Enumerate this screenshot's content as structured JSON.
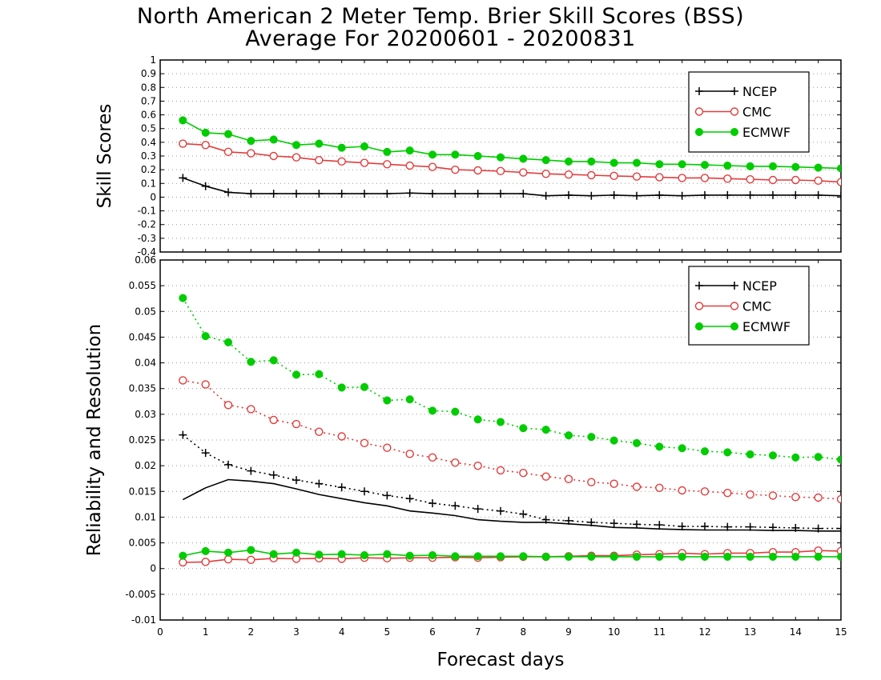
{
  "title_line1": "North American 2 Meter Temp. Brier Skill Scores (BSS)",
  "title_line2": "Average For 20200601 - 20200831",
  "colors": {
    "NCEP": "#000000",
    "CMC": "#e23c3c",
    "ECMWF": "#00cc00"
  },
  "chart_data": [
    {
      "type": "line",
      "ylabel": "Skill Scores",
      "xlabel": "",
      "xlim": [
        0,
        15
      ],
      "ylim": [
        -0.4,
        1
      ],
      "y_ticks": [
        "-0.4",
        "-0.3",
        "-0.2",
        "-0.1",
        "0",
        "0.1",
        "0.2",
        "0.3",
        "0.4",
        "0.5",
        "0.6",
        "0.7",
        "0.8",
        "0.9",
        "1"
      ],
      "grid": true,
      "legend": {
        "position": "top-right",
        "entries": [
          "NCEP",
          "CMC",
          "ECMWF"
        ]
      },
      "x": [
        0.5,
        1,
        1.5,
        2,
        2.5,
        3,
        3.5,
        4,
        4.5,
        5,
        5.5,
        6,
        6.5,
        7,
        7.5,
        8,
        8.5,
        9,
        9.5,
        10,
        10.5,
        11,
        11.5,
        12,
        12.5,
        13,
        13.5,
        14,
        14.5,
        15
      ],
      "series": [
        {
          "name": "NCEP",
          "marker": "plus",
          "values": [
            0.14,
            0.08,
            0.035,
            0.025,
            0.025,
            0.025,
            0.025,
            0.025,
            0.025,
            0.025,
            0.03,
            0.025,
            0.025,
            0.025,
            0.025,
            0.025,
            0.01,
            0.015,
            0.01,
            0.015,
            0.01,
            0.015,
            0.01,
            0.015,
            0.015,
            0.015,
            0.015,
            0.015,
            0.015,
            0.01
          ]
        },
        {
          "name": "CMC",
          "marker": "open-circle",
          "values": [
            0.39,
            0.38,
            0.33,
            0.32,
            0.3,
            0.29,
            0.27,
            0.26,
            0.25,
            0.24,
            0.23,
            0.22,
            0.2,
            0.195,
            0.19,
            0.18,
            0.17,
            0.165,
            0.16,
            0.155,
            0.15,
            0.145,
            0.14,
            0.14,
            0.135,
            0.13,
            0.125,
            0.125,
            0.12,
            0.11
          ]
        },
        {
          "name": "ECMWF",
          "marker": "filled-circle",
          "values": [
            0.56,
            0.47,
            0.46,
            0.41,
            0.42,
            0.38,
            0.39,
            0.36,
            0.37,
            0.33,
            0.34,
            0.31,
            0.31,
            0.3,
            0.29,
            0.28,
            0.27,
            0.26,
            0.26,
            0.25,
            0.25,
            0.24,
            0.24,
            0.235,
            0.23,
            0.225,
            0.225,
            0.22,
            0.215,
            0.21
          ]
        }
      ]
    },
    {
      "type": "line",
      "ylabel": "Reliability and Resolution",
      "xlabel": "Forecast days",
      "xlim": [
        0,
        15
      ],
      "ylim": [
        -0.01,
        0.06
      ],
      "y_ticks": [
        "-0.01",
        "-0.005",
        "0",
        "0.005",
        "0.01",
        "0.015",
        "0.02",
        "0.025",
        "0.03",
        "0.035",
        "0.04",
        "0.045",
        "0.05",
        "0.055",
        "0.06"
      ],
      "x_ticks": [
        "0",
        "1",
        "2",
        "3",
        "4",
        "5",
        "6",
        "7",
        "8",
        "9",
        "10",
        "11",
        "12",
        "13",
        "14",
        "15"
      ],
      "grid": true,
      "legend": {
        "position": "top-right",
        "entries": [
          "NCEP",
          "CMC",
          "ECMWF"
        ]
      },
      "x": [
        0.5,
        1,
        1.5,
        2,
        2.5,
        3,
        3.5,
        4,
        4.5,
        5,
        5.5,
        6,
        6.5,
        7,
        7.5,
        8,
        8.5,
        9,
        9.5,
        10,
        10.5,
        11,
        11.5,
        12,
        12.5,
        13,
        13.5,
        14,
        14.5,
        15
      ],
      "series": [
        {
          "name": "NCEP",
          "metric": "resolution",
          "style": "dotted",
          "marker": "plus",
          "values": [
            0.026,
            0.0225,
            0.0202,
            0.019,
            0.0182,
            0.0172,
            0.0165,
            0.0158,
            0.015,
            0.0142,
            0.0136,
            0.0127,
            0.0122,
            0.0116,
            0.0112,
            0.0106,
            0.0095,
            0.0093,
            0.009,
            0.0088,
            0.0086,
            0.0085,
            0.0082,
            0.0082,
            0.0081,
            0.0081,
            0.008,
            0.0079,
            0.0078,
            0.0078
          ]
        },
        {
          "name": "NCEP",
          "metric": "reliability",
          "style": "solid",
          "marker": "none",
          "values": [
            0.0134,
            0.0157,
            0.0173,
            0.017,
            0.0165,
            0.0155,
            0.0144,
            0.0136,
            0.0128,
            0.0122,
            0.0112,
            0.0108,
            0.0103,
            0.0095,
            0.0092,
            0.009,
            0.009,
            0.0087,
            0.0084,
            0.008,
            0.0079,
            0.0077,
            0.0076,
            0.0075,
            0.0075,
            0.0075,
            0.0074,
            0.0074,
            0.0073,
            0.0073
          ]
        },
        {
          "name": "CMC",
          "metric": "resolution",
          "style": "dotted",
          "marker": "open-circle",
          "values": [
            0.0366,
            0.0358,
            0.0318,
            0.031,
            0.0289,
            0.0281,
            0.0266,
            0.0257,
            0.0244,
            0.0235,
            0.0223,
            0.0216,
            0.0206,
            0.02,
            0.0191,
            0.0186,
            0.0179,
            0.0174,
            0.0168,
            0.0165,
            0.0159,
            0.0157,
            0.0152,
            0.015,
            0.0147,
            0.0144,
            0.0142,
            0.0139,
            0.0138,
            0.0135
          ]
        },
        {
          "name": "CMC",
          "metric": "reliability",
          "style": "solid",
          "marker": "open-circle",
          "values": [
            0.0012,
            0.0013,
            0.0018,
            0.0017,
            0.002,
            0.0019,
            0.002,
            0.0019,
            0.0021,
            0.002,
            0.0021,
            0.0021,
            0.0022,
            0.0021,
            0.0022,
            0.0023,
            0.0023,
            0.0024,
            0.0025,
            0.0025,
            0.0027,
            0.0028,
            0.003,
            0.0028,
            0.003,
            0.003,
            0.0032,
            0.0032,
            0.0035,
            0.0034
          ]
        },
        {
          "name": "ECMWF",
          "metric": "resolution",
          "style": "dotted",
          "marker": "filled-circle",
          "values": [
            0.0526,
            0.0452,
            0.044,
            0.0402,
            0.0405,
            0.0377,
            0.0378,
            0.0352,
            0.0353,
            0.0327,
            0.0329,
            0.0307,
            0.0305,
            0.029,
            0.0285,
            0.0273,
            0.027,
            0.0259,
            0.0256,
            0.0249,
            0.0244,
            0.0237,
            0.0234,
            0.0228,
            0.0226,
            0.0222,
            0.022,
            0.0216,
            0.0217,
            0.0212
          ]
        },
        {
          "name": "ECMWF",
          "metric": "reliability",
          "style": "solid",
          "marker": "filled-circle",
          "values": [
            0.0025,
            0.0034,
            0.0031,
            0.0036,
            0.0028,
            0.0031,
            0.0027,
            0.0028,
            0.0026,
            0.0028,
            0.0025,
            0.0026,
            0.0024,
            0.0024,
            0.0024,
            0.0024,
            0.0023,
            0.0023,
            0.0023,
            0.0023,
            0.0023,
            0.0023,
            0.0023,
            0.0023,
            0.0023,
            0.0023,
            0.0023,
            0.0023,
            0.0023,
            0.0023
          ]
        }
      ]
    }
  ]
}
